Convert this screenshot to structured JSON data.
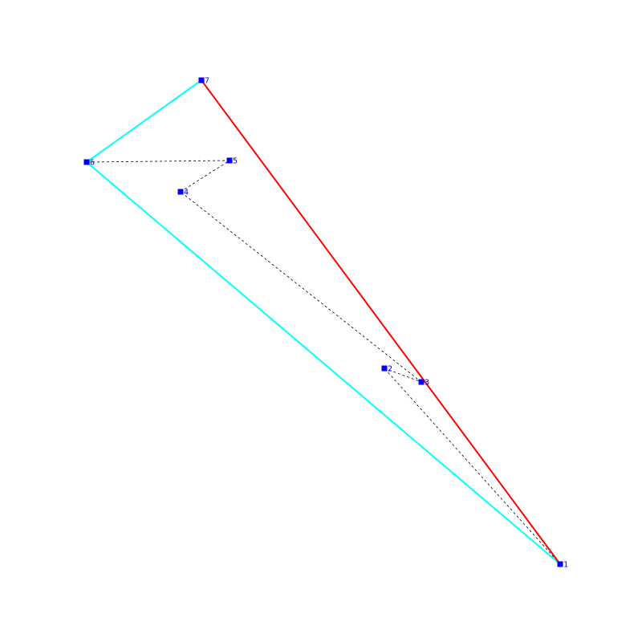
{
  "diagram": {
    "colors": {
      "background": "#ffffff",
      "point": "#0000ff",
      "label": "#0000ff",
      "path": "#000000",
      "hull": "#00ffff",
      "highlight": "#ff0000"
    },
    "points": [
      {
        "id": "1",
        "label": "1"
      },
      {
        "id": "2",
        "label": "2"
      },
      {
        "id": "3",
        "label": "3"
      },
      {
        "id": "4",
        "label": "4"
      },
      {
        "id": "5",
        "label": "5"
      },
      {
        "id": "6",
        "label": "6"
      },
      {
        "id": "7",
        "label": "7"
      }
    ],
    "dashed_path": [
      "1",
      "2",
      "3",
      "4",
      "5",
      "6",
      "7"
    ],
    "hull_edges": [
      [
        "1",
        "6"
      ],
      [
        "6",
        "7"
      ]
    ],
    "highlight_edge": [
      "7",
      "1"
    ]
  }
}
